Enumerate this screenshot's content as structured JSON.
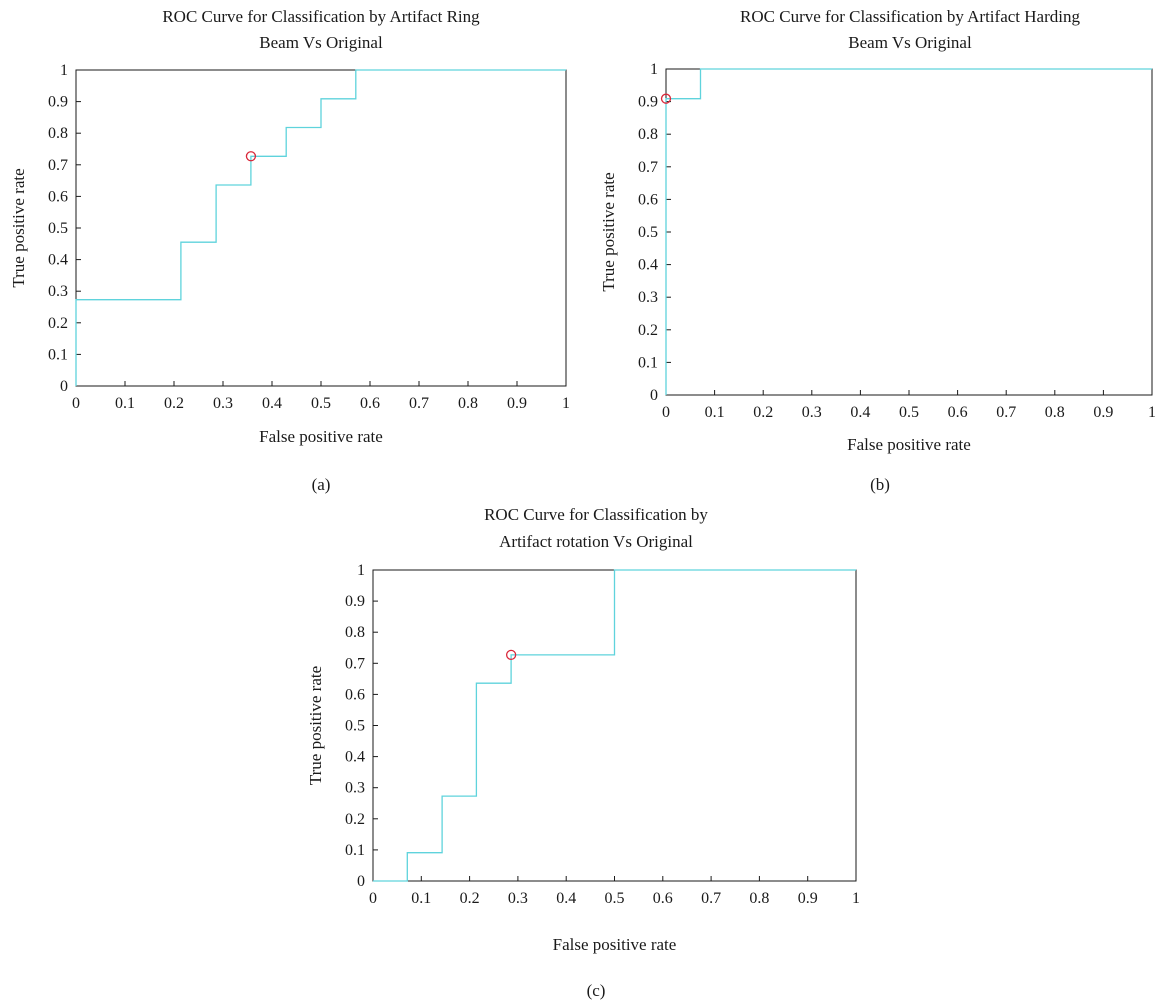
{
  "chart_data": [
    {
      "type": "line",
      "panel_label": "(a)",
      "title": [
        "ROC Curve for Classification by Artifact Ring",
        "Beam Vs Original"
      ],
      "xlabel": "False positive rate",
      "ylabel": "True positive rate",
      "xlim": [
        0,
        1
      ],
      "ylim": [
        0,
        1
      ],
      "xticks": [
        "0",
        "0.1",
        "0.2",
        "0.3",
        "0.4",
        "0.5",
        "0.6",
        "0.7",
        "0.8",
        "0.9",
        "1"
      ],
      "yticks": [
        "0",
        "0.1",
        "0.2",
        "0.3",
        "0.4",
        "0.5",
        "0.6",
        "0.7",
        "0.8",
        "0.9",
        "1"
      ],
      "grid": false,
      "legend": "none",
      "series_color": "#5fd3dc",
      "marker_color": "#d9283a",
      "series": [
        {
          "x": [
            0,
            0,
            0.214,
            0.214,
            0.286,
            0.286,
            0.357,
            0.357,
            0.429,
            0.429,
            0.5,
            0.5,
            0.571,
            0.571,
            1
          ],
          "y": [
            0,
            0.273,
            0.273,
            0.455,
            0.455,
            0.636,
            0.636,
            0.727,
            0.727,
            0.818,
            0.818,
            0.909,
            0.909,
            1,
            1
          ]
        }
      ],
      "operating_point": {
        "x": 0.357,
        "y": 0.727
      }
    },
    {
      "type": "line",
      "panel_label": "(b)",
      "title": [
        "ROC Curve for Classification by Artifact Harding",
        "Beam Vs Original"
      ],
      "xlabel": "False positive rate",
      "ylabel": "True positive rate",
      "xlim": [
        0,
        1
      ],
      "ylim": [
        0,
        1
      ],
      "xticks": [
        "0",
        "0.1",
        "0.2",
        "0.3",
        "0.4",
        "0.5",
        "0.6",
        "0.7",
        "0.8",
        "0.9",
        "1"
      ],
      "yticks": [
        "0",
        "0.1",
        "0.2",
        "0.3",
        "0.4",
        "0.5",
        "0.6",
        "0.7",
        "0.8",
        "0.9",
        "1"
      ],
      "grid": false,
      "legend": "none",
      "series_color": "#5fd3dc",
      "marker_color": "#d9283a",
      "series": [
        {
          "x": [
            0,
            0,
            0.071,
            0.071,
            1
          ],
          "y": [
            0,
            0.909,
            0.909,
            1,
            1
          ]
        }
      ],
      "operating_point": {
        "x": 0,
        "y": 0.909
      }
    },
    {
      "type": "line",
      "panel_label": "(c)",
      "title": [
        "ROC Curve for Classification by",
        "Artifact rotation Vs Original"
      ],
      "xlabel": "False positive rate",
      "ylabel": "True positive rate",
      "xlim": [
        0,
        1
      ],
      "ylim": [
        0,
        1
      ],
      "xticks": [
        "0",
        "0.1",
        "0.2",
        "0.3",
        "0.4",
        "0.5",
        "0.6",
        "0.7",
        "0.8",
        "0.9",
        "1"
      ],
      "yticks": [
        "0",
        "0.1",
        "0.2",
        "0.3",
        "0.4",
        "0.5",
        "0.6",
        "0.7",
        "0.8",
        "0.9",
        "1"
      ],
      "grid": false,
      "legend": "none",
      "series_color": "#5fd3dc",
      "marker_color": "#d9283a",
      "series": [
        {
          "x": [
            0,
            0.071,
            0.071,
            0.143,
            0.143,
            0.214,
            0.214,
            0.286,
            0.286,
            0.5,
            0.5,
            1
          ],
          "y": [
            0,
            0,
            0.091,
            0.091,
            0.273,
            0.273,
            0.636,
            0.636,
            0.727,
            0.727,
            1,
            1
          ]
        }
      ],
      "operating_point": {
        "x": 0.286,
        "y": 0.727
      }
    }
  ]
}
